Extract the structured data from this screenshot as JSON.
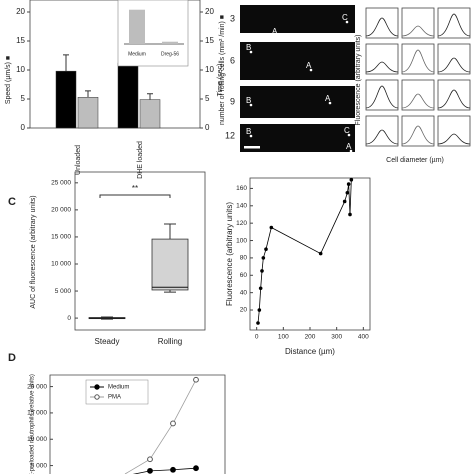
{
  "chart_data": [
    {
      "type": "bar",
      "categories": [
        "Unloaded",
        "DHE loaded"
      ],
      "series": [
        {
          "name": "Speed (µm/s) ■",
          "color": "#000000",
          "values": [
            9.8,
            11.2
          ],
          "errors": [
            2.8,
            1.8
          ]
        },
        {
          "name": "number of rolling cells (mm² /min) ■",
          "color": "#bdbdbd",
          "axis": "y2",
          "values": [
            5.3,
            4.9
          ],
          "errors": [
            1.1,
            1.0
          ]
        }
      ],
      "ylim": [
        0,
        20
      ],
      "yticks": [
        0,
        5,
        10,
        15,
        20
      ],
      "y2lim": [
        0,
        20
      ],
      "y2ticks": [
        0,
        5,
        10,
        15,
        20
      ]
    },
    {
      "type": "bar",
      "categories": [
        "Medium",
        "Dreg-56"
      ],
      "values": [
        30,
        2
      ],
      "color": "#bdbdbd",
      "ylim": [
        0,
        35
      ]
    },
    {
      "type": "box",
      "categories": [
        "Steady",
        "Rolling"
      ],
      "boxes": [
        {
          "min": -200,
          "q1": -100,
          "median": 0,
          "q3": 100,
          "max": 200
        },
        {
          "min": 4800,
          "q1": 5200,
          "median": 5700,
          "q3": 14600,
          "max": 17400
        }
      ],
      "ylabel": "AUC of fluorescence (arbitrary units)",
      "annotation": "**",
      "color": "#d3d3d3",
      "ylim": [
        -2200,
        27000
      ],
      "yticks": [
        0,
        {
          "value": 5000,
          "label": "5 000"
        },
        {
          "value": 10000,
          "label": "10 000"
        },
        {
          "value": 15000,
          "label": "15 000"
        },
        {
          "value": 20000,
          "label": "20 000"
        },
        {
          "value": 25000,
          "label": "25 000"
        }
      ]
    },
    {
      "type": "line",
      "xlabel": "Distance (µm)",
      "ylabel": "Fluorescence (arbitrary units)",
      "x": [
        5,
        10,
        15,
        20,
        25,
        35,
        55,
        240,
        330,
        340,
        345,
        350,
        355
      ],
      "values": [
        5,
        20,
        45,
        65,
        80,
        90,
        115,
        85,
        145,
        155,
        165,
        130,
        170
      ],
      "color": "#000000",
      "xlim": [
        -25,
        425
      ],
      "xticks": [
        0,
        100,
        200,
        300,
        400
      ],
      "ylim": [
        -3,
        172
      ],
      "yticks": [
        20,
        40,
        60,
        80,
        100,
        120,
        140,
        160
      ]
    },
    {
      "type": "line",
      "ylabel": "DHE-preloaded neutrophils (relative units)",
      "categories": [
        null,
        null,
        null
      ],
      "series": [
        {
          "name": "Medium",
          "color": "#000000",
          "values": [
            4000,
            4200,
            4500
          ]
        },
        {
          "name": "PMA",
          "color": "#9e9e9e",
          "values": [
            6200,
            13000,
            21300
          ]
        }
      ],
      "ylim": [
        3400,
        22200
      ],
      "yticks": [
        {
          "value": 5000,
          "label": "5 000"
        },
        {
          "value": 10000,
          "label": "10 000"
        },
        {
          "value": 15000,
          "label": "15 000"
        },
        {
          "value": 20000,
          "label": "20 000"
        }
      ]
    }
  ],
  "panel_labels": [
    "C",
    "D"
  ],
  "micrograph": {
    "time_label": "Time (sec)",
    "times": [
      "3",
      "6",
      "9",
      "12"
    ],
    "cells": [
      [
        "A",
        "C"
      ],
      [
        "B",
        "A"
      ],
      [
        "B",
        "A"
      ],
      [
        "B",
        "C",
        "A"
      ]
    ],
    "fluorescence_label": "Fluorescence (arbitrary units)",
    "diameter_label": "Cell diameter (µm)"
  }
}
